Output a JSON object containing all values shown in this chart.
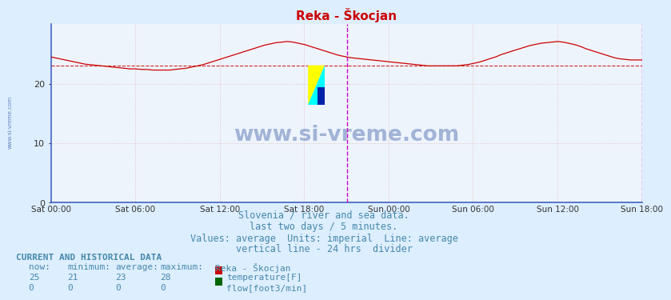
{
  "title": "Reka - Škocjan",
  "title_color": "#cc0000",
  "bg_color": "#ddeeff",
  "plot_bg_color": "#eef4fc",
  "grid_color": "#ddaaaa",
  "grid_style": "dotted",
  "left_spine_color": "#4466cc",
  "bottom_spine_color": "#4466cc",
  "xlabel_ticks": [
    "Sat 00:00",
    "Sat 06:00",
    "Sat 12:00",
    "Sat 18:00",
    "Sun 00:00",
    "Sun 06:00",
    "Sun 12:00",
    "Sun 18:00"
  ],
  "ylim": [
    0,
    30
  ],
  "yticks": [
    0,
    10,
    20
  ],
  "avg_value": 23,
  "avg_line_color": "#cc0000",
  "temp_line_color": "#cc0000",
  "flow_line_color": "#006600",
  "vert_line_color": "#cc00cc",
  "watermark": "www.si-vreme.com",
  "watermark_color": "#4466aa",
  "watermark_alpha": 0.45,
  "side_label": "www.si-vreme.com",
  "footer_lines": [
    "Slovenia / river and sea data.",
    "last two days / 5 minutes.",
    "Values: average  Units: imperial  Line: average",
    "vertical line - 24 hrs  divider"
  ],
  "footer_color": "#4488aa",
  "footer_fontsize": 8.5,
  "current_and_hist": "CURRENT AND HISTORICAL DATA",
  "col_headers": [
    "now:",
    "minimum:",
    "average:",
    "maximum:",
    "Reka - Škocjan"
  ],
  "row1_vals": [
    "25",
    "21",
    "23",
    "28"
  ],
  "row1_label": "temperature[F]",
  "row1_swatch": "#cc0000",
  "row2_vals": [
    "0",
    "0",
    "0",
    "0"
  ],
  "row2_label": "flow[foot3/min]",
  "row2_swatch": "#006600",
  "n_points": 576,
  "temp_data_raw": [
    24.5,
    24.3,
    24.1,
    23.9,
    23.7,
    23.5,
    23.3,
    23.2,
    23.1,
    23.0,
    22.9,
    22.8,
    22.7,
    22.6,
    22.5,
    22.5,
    22.4,
    22.4,
    22.3,
    22.3,
    22.3,
    22.3,
    22.4,
    22.5,
    22.6,
    22.8,
    23.0,
    23.2,
    23.5,
    23.8,
    24.1,
    24.4,
    24.7,
    25.0,
    25.3,
    25.6,
    25.9,
    26.2,
    26.5,
    26.7,
    26.9,
    27.0,
    27.1,
    27.0,
    26.8,
    26.6,
    26.3,
    26.0,
    25.7,
    25.4,
    25.1,
    24.8,
    24.6,
    24.4,
    24.3,
    24.2,
    24.1,
    24.0,
    23.9,
    23.8,
    23.7,
    23.6,
    23.5,
    23.4,
    23.3,
    23.2,
    23.1,
    23.0,
    23.0,
    23.0,
    23.0,
    23.0,
    23.0,
    23.1,
    23.2,
    23.4,
    23.6,
    23.9,
    24.2,
    24.5,
    24.9,
    25.2,
    25.5,
    25.8,
    26.1,
    26.4,
    26.6,
    26.8,
    26.9,
    27.0,
    27.1,
    27.0,
    26.8,
    26.6,
    26.3,
    25.9,
    25.6,
    25.3,
    25.0,
    24.7,
    24.4,
    24.2,
    24.1,
    24.0,
    24.0,
    24.0
  ]
}
